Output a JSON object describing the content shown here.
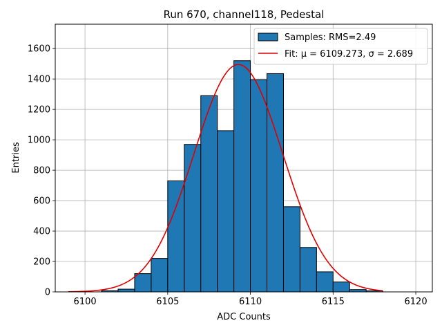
{
  "chart_data": {
    "type": "bar",
    "title": "Run 670, channel118, Pedestal",
    "xlabel": "ADC Counts",
    "ylabel": "Entries",
    "xlim": [
      6098.2,
      6121.0
    ],
    "ylim": [
      0,
      1760
    ],
    "xticks": [
      6100,
      6105,
      6110,
      6115,
      6120
    ],
    "yticks": [
      0,
      200,
      400,
      600,
      800,
      1000,
      1200,
      1400,
      1600
    ],
    "grid": true,
    "legend_position": "top-right",
    "bin_edges": [
      6101,
      6102,
      6103,
      6104,
      6105,
      6106,
      6107,
      6108,
      6109,
      6110,
      6111,
      6112,
      6113,
      6114,
      6115,
      6116,
      6117,
      6118
    ],
    "series": [
      {
        "name": "Samples: RMS=2.49",
        "kind": "histogram",
        "color": "#1f77b4",
        "edgecolor": "#000000",
        "values": [
          8,
          18,
          120,
          220,
          730,
          970,
          1290,
          1060,
          1520,
          1395,
          1435,
          560,
          292,
          132,
          65,
          15,
          7
        ]
      },
      {
        "name": "Fit: μ = 6109.273, σ = 2.689",
        "kind": "gaussian",
        "color": "#e00000",
        "mu": 6109.273,
        "sigma": 2.689,
        "peak": 1495,
        "x_range": [
          6099,
          6118
        ]
      }
    ]
  }
}
